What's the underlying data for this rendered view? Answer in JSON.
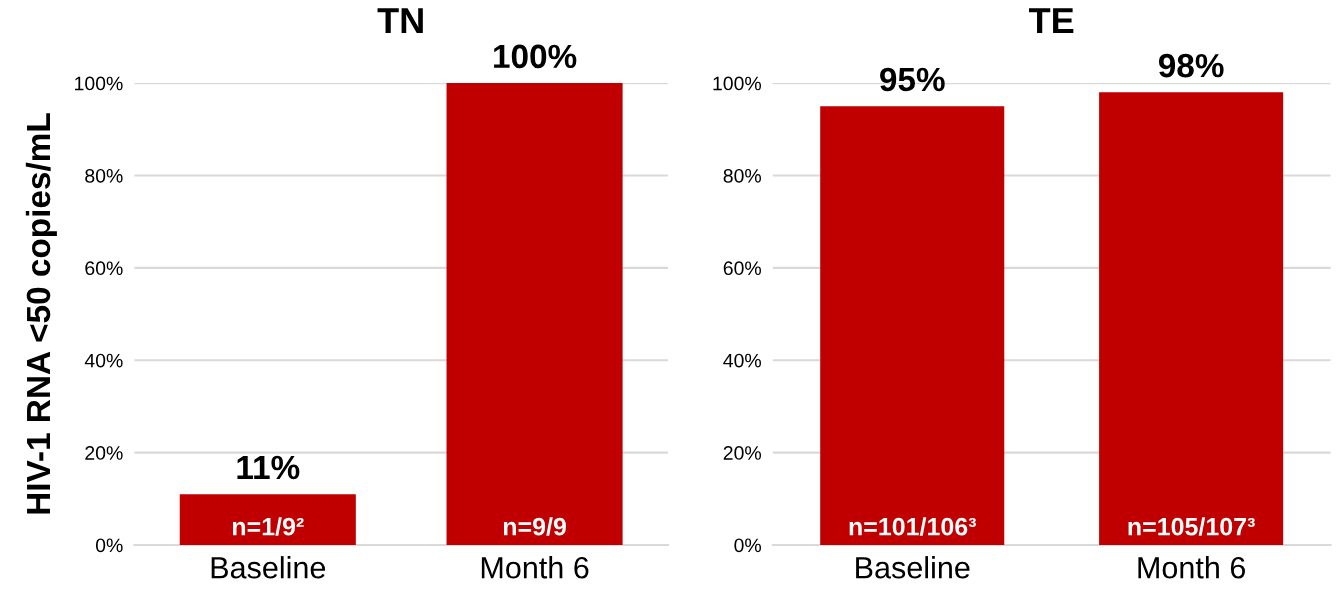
{
  "chart_data": [
    {
      "type": "bar",
      "title": "TN",
      "ylabel": "HIV-1 RNA <50 copies/mL",
      "categories": [
        "Baseline",
        "Month 6"
      ],
      "values": [
        11,
        100
      ],
      "color": "#c00000",
      "value_labels": [
        "11%",
        "100%"
      ],
      "ylim": [
        0,
        100
      ],
      "yticks": [
        {
          "value": 0,
          "label": "0%"
        },
        {
          "value": 20,
          "label": "20%"
        },
        {
          "value": 40,
          "label": "40%"
        },
        {
          "value": 60,
          "label": "60%"
        },
        {
          "value": 80,
          "label": "80%"
        },
        {
          "value": 100,
          "label": "100%"
        }
      ],
      "grid": "y",
      "annotations": [
        "n=1/9²",
        "n=9/9"
      ]
    },
    {
      "type": "bar",
      "title": "TE",
      "categories": [
        "Baseline",
        "Month 6"
      ],
      "values": [
        95,
        98
      ],
      "color": "#c00000",
      "value_labels": [
        "95%",
        "98%"
      ],
      "ylim": [
        0,
        100
      ],
      "yticks": [
        {
          "value": 0,
          "label": "0%"
        },
        {
          "value": 20,
          "label": "20%"
        },
        {
          "value": 40,
          "label": "40%"
        },
        {
          "value": 60,
          "label": "60%"
        },
        {
          "value": 80,
          "label": "80%"
        },
        {
          "value": 100,
          "label": "100%"
        }
      ],
      "grid": "y",
      "annotations": [
        "n=101/106³",
        "n=105/107³"
      ]
    }
  ]
}
